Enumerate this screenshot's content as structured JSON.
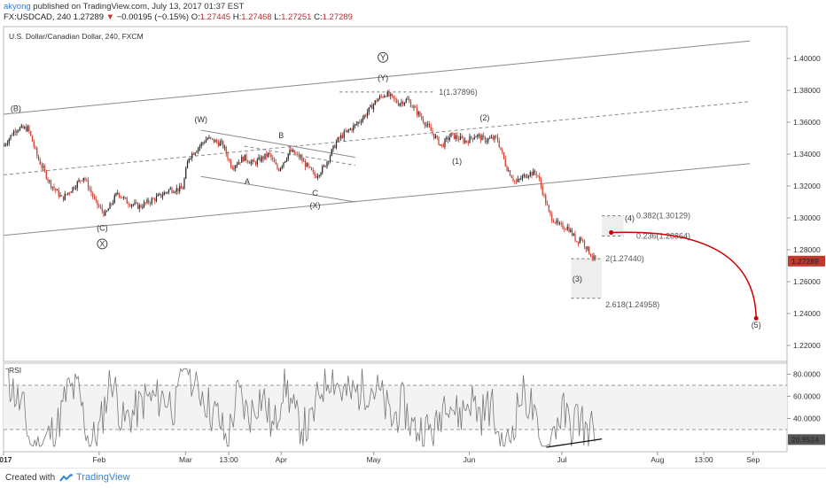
{
  "header": {
    "user": "akyong",
    "published": "published on TradingView.com, July 13, 2017 01:37 EST",
    "symbol": "FX:USDCAD, 240",
    "last": "1.27289",
    "change_arrow": "▼",
    "change": "−0.00195 (−0.15%)",
    "o_label": "O:",
    "o": "1.27445",
    "h_label": "H:",
    "h": "1.27468",
    "l_label": "L:",
    "l": "1.27251",
    "c_label": "C:",
    "c": "1.27289"
  },
  "chart_title": "U.S. Dollar/Canadian Dollar, 240, FXCM",
  "rsi_label": "RSI",
  "footer": {
    "created": "Created with",
    "brand": "TradingView"
  },
  "colors": {
    "up": "#222222",
    "down": "#d0382b",
    "price_tag": "#c0392b",
    "path": "#cc0000",
    "rsi": "#777777",
    "fib_box": "#eeeeee"
  },
  "chart_data": [
    {
      "type": "candlestick",
      "title": "U.S. Dollar/Canadian Dollar, 240, FXCM",
      "ylim": [
        1.21,
        1.42
      ],
      "yticks": [
        "1.40000",
        "1.38000",
        "1.36000",
        "1.34000",
        "1.32000",
        "1.30000",
        "1.28000",
        "1.26000",
        "1.24000",
        "1.22000"
      ],
      "xticks": [
        "2017",
        "Feb",
        "Mar",
        "13:00",
        "Apr",
        "May",
        "Jun",
        "Jul",
        "Aug",
        "13:00",
        "Sep"
      ],
      "last_price": "1.27289",
      "close_path": [
        [
          "2017-01-01",
          1.345
        ],
        [
          "2017-01-05",
          1.356
        ],
        [
          "2017-01-09",
          1.356
        ],
        [
          "2017-01-12",
          1.338
        ],
        [
          "2017-01-16",
          1.322
        ],
        [
          "2017-01-20",
          1.312
        ],
        [
          "2017-01-23",
          1.318
        ],
        [
          "2017-01-27",
          1.326
        ],
        [
          "2017-01-31",
          1.309
        ],
        [
          "2017-02-03",
          1.302
        ],
        [
          "2017-02-07",
          1.316
        ],
        [
          "2017-02-10",
          1.31
        ],
        [
          "2017-02-14",
          1.307
        ],
        [
          "2017-02-17",
          1.31
        ],
        [
          "2017-02-21",
          1.314
        ],
        [
          "2017-02-24",
          1.318
        ],
        [
          "2017-02-28",
          1.318
        ],
        [
          "2017-03-02",
          1.338
        ],
        [
          "2017-03-06",
          1.346
        ],
        [
          "2017-03-08",
          1.35
        ],
        [
          "2017-03-13",
          1.346
        ],
        [
          "2017-03-16",
          1.332
        ],
        [
          "2017-03-20",
          1.338
        ],
        [
          "2017-03-23",
          1.334
        ],
        [
          "2017-03-28",
          1.34
        ],
        [
          "2017-03-31",
          1.33
        ],
        [
          "2017-04-04",
          1.342
        ],
        [
          "2017-04-07",
          1.338
        ],
        [
          "2017-04-12",
          1.326
        ],
        [
          "2017-04-15",
          1.332
        ],
        [
          "2017-04-19",
          1.348
        ],
        [
          "2017-04-21",
          1.352
        ],
        [
          "2017-04-25",
          1.358
        ],
        [
          "2017-04-28",
          1.364
        ],
        [
          "2017-05-02",
          1.374
        ],
        [
          "2017-05-05",
          1.378
        ],
        [
          "2017-05-09",
          1.372
        ],
        [
          "2017-05-12",
          1.374
        ],
        [
          "2017-05-16",
          1.364
        ],
        [
          "2017-05-19",
          1.356
        ],
        [
          "2017-05-23",
          1.345
        ],
        [
          "2017-05-26",
          1.352
        ],
        [
          "2017-05-31",
          1.348
        ],
        [
          "2017-06-03",
          1.352
        ],
        [
          "2017-06-06",
          1.349
        ],
        [
          "2017-06-10",
          1.35
        ],
        [
          "2017-06-13",
          1.332
        ],
        [
          "2017-06-16",
          1.322
        ],
        [
          "2017-06-20",
          1.328
        ],
        [
          "2017-06-23",
          1.328
        ],
        [
          "2017-06-27",
          1.302
        ],
        [
          "2017-06-30",
          1.295
        ],
        [
          "2017-07-03",
          1.294
        ],
        [
          "2017-07-06",
          1.285
        ],
        [
          "2017-07-07",
          1.288
        ],
        [
          "2017-07-10",
          1.278
        ],
        [
          "2017-07-12",
          1.2729
        ]
      ],
      "wave_labels": [
        {
          "text": "(B)",
          "x": "2017-01-05",
          "y": 1.367
        },
        {
          "text": "(C)",
          "x": "2017-02-02",
          "y": 1.292
        },
        {
          "text": "X",
          "x": "2017-02-02",
          "y": 1.282,
          "circled": true
        },
        {
          "text": "(W)",
          "x": "2017-03-06",
          "y": 1.36
        },
        {
          "text": "A",
          "x": "2017-03-21",
          "y": 1.321
        },
        {
          "text": "B",
          "x": "2017-04-01",
          "y": 1.35
        },
        {
          "text": "C",
          "x": "2017-04-12",
          "y": 1.314
        },
        {
          "text": "(X)",
          "x": "2017-04-12",
          "y": 1.306
        },
        {
          "text": "Y",
          "x": "2017-05-04",
          "y": 1.399,
          "circled": true
        },
        {
          "text": "(Y)",
          "x": "2017-05-04",
          "y": 1.386
        },
        {
          "text": "(1)",
          "x": "2017-05-28",
          "y": 1.334
        },
        {
          "text": "(2)",
          "x": "2017-06-06",
          "y": 1.361
        },
        {
          "text": "(3)",
          "x": "2017-07-06",
          "y": 1.26
        },
        {
          "text": "(4)",
          "x": "2017-07-23",
          "y": 1.298
        },
        {
          "text": "(5)",
          "x": "2017-09-02",
          "y": 1.231
        }
      ],
      "fib_levels": [
        {
          "label": "1(1.37896)",
          "value": 1.37896
        },
        {
          "label": "0.382(1.30129)",
          "value": 1.30129
        },
        {
          "label": "0.236(1.28864)",
          "value": 1.28864
        },
        {
          "label": "2(1.27440)",
          "value": 1.2744
        },
        {
          "label": "2.618(1.24958)",
          "value": 1.24958
        }
      ],
      "channel_lines": [
        {
          "style": "solid",
          "from": [
            "2017-01-01",
            1.365
          ],
          "to": [
            "2017-08-31",
            1.411
          ]
        },
        {
          "style": "dashed",
          "from": [
            "2017-01-01",
            1.327
          ],
          "to": [
            "2017-08-31",
            1.373
          ]
        },
        {
          "style": "solid",
          "from": [
            "2017-01-01",
            1.289
          ],
          "to": [
            "2017-08-31",
            1.334
          ]
        },
        {
          "style": "solid",
          "from": [
            "2017-03-06",
            1.355
          ],
          "to": [
            "2017-04-25",
            1.338
          ]
        },
        {
          "style": "solid",
          "from": [
            "2017-03-06",
            1.326
          ],
          "to": [
            "2017-04-25",
            1.31
          ]
        },
        {
          "style": "dashed",
          "from": [
            "2017-03-20",
            1.345
          ],
          "to": [
            "2017-04-25",
            1.333
          ]
        }
      ],
      "projection": {
        "from": [
          "2017-07-17",
          1.2908
        ],
        "to": [
          "2017-09-02",
          1.237
        ]
      }
    },
    {
      "type": "line",
      "title": "RSI",
      "ylim": [
        10,
        90
      ],
      "yticks": [
        "80.0000",
        "60.0000",
        "40.0000"
      ],
      "levels": [
        70,
        30
      ],
      "last_value": "20.9524",
      "trendline": {
        "from": [
          "2017-06-26",
          14
        ],
        "to": [
          "2017-07-14",
          21.5
        ]
      }
    }
  ]
}
